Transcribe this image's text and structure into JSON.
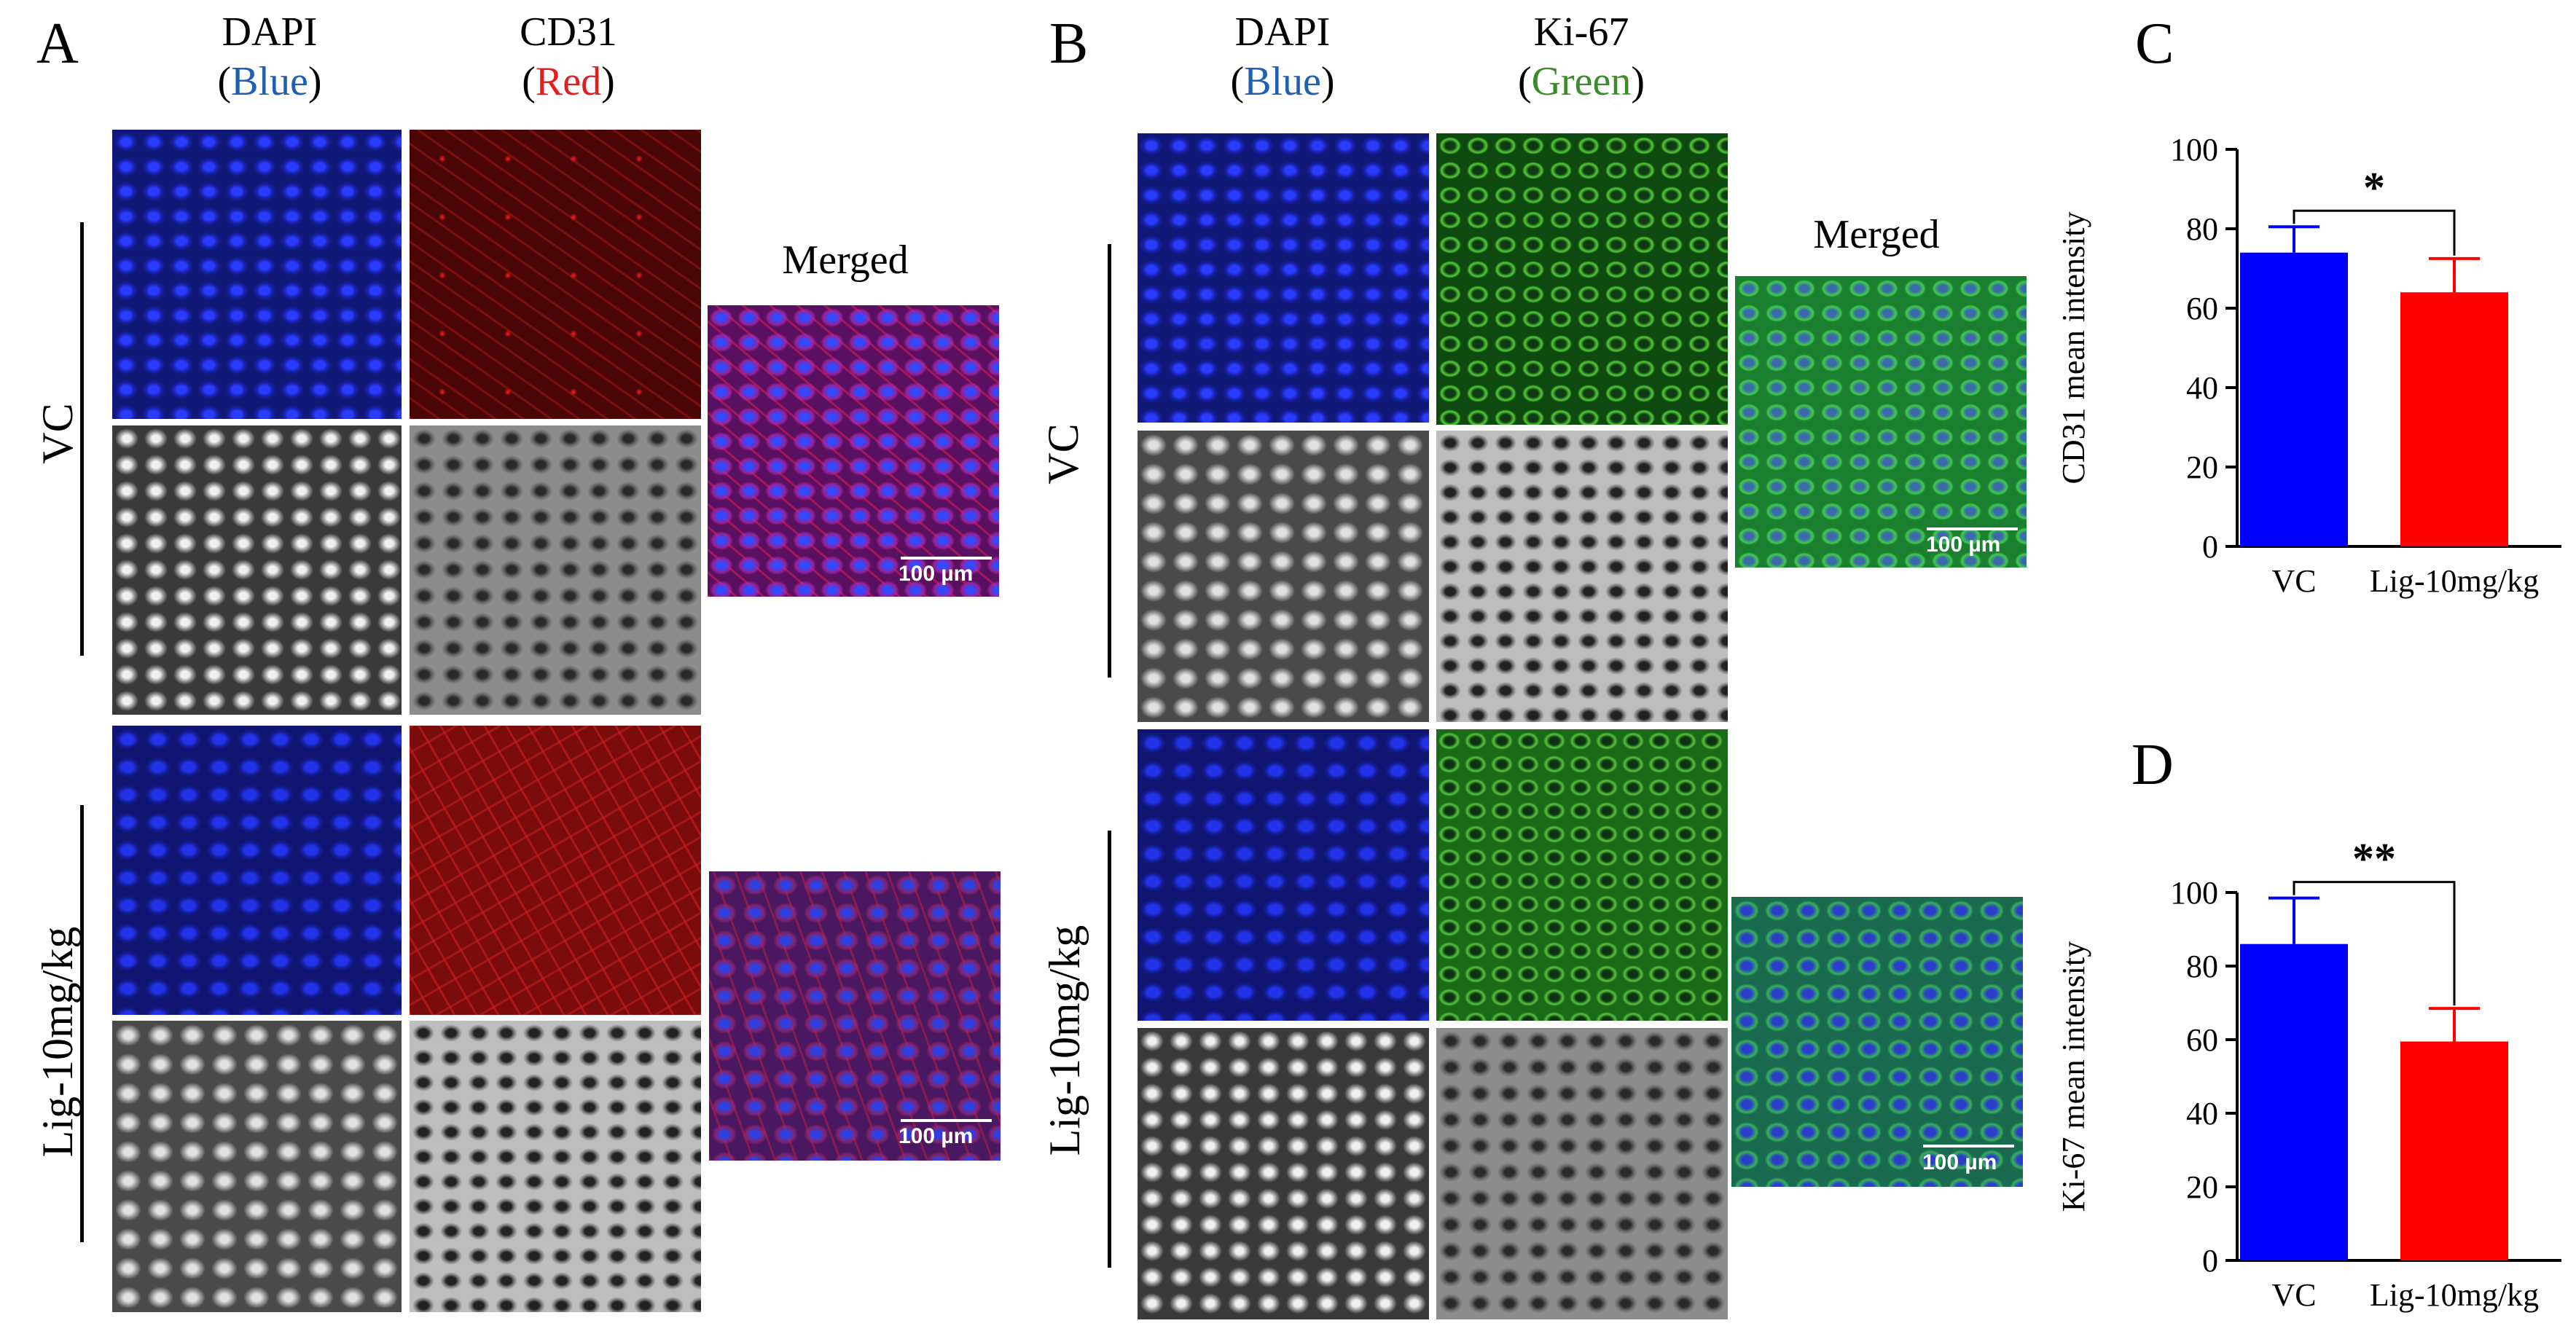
{
  "panels": {
    "A": {
      "letter": "A",
      "col1": {
        "name": "DAPI",
        "color_word": "Blue"
      },
      "col2": {
        "name": "CD31",
        "color_word": "Red"
      },
      "merged": "Merged",
      "group1": "VC",
      "group2": "Lig-10mg/kg",
      "scale": "100 µm"
    },
    "B": {
      "letter": "B",
      "col1": {
        "name": "DAPI",
        "color_word": "Blue"
      },
      "col2": {
        "name": "Ki-67",
        "color_word": "Green"
      },
      "merged": "Merged",
      "group1": "VC",
      "group2": "Lig-10mg/kg",
      "scale": "100 µm"
    },
    "C": {
      "letter": "C"
    },
    "D": {
      "letter": "D"
    }
  },
  "colors": {
    "vc": "#0000ff",
    "lig": "#ff0000"
  },
  "chart_data": [
    {
      "type": "bar",
      "panel": "C",
      "categories": [
        "VC",
        "Lig-10mg/kg"
      ],
      "values": [
        74,
        64
      ],
      "error": [
        6.5,
        8.5
      ],
      "ylabel": "CD31 mean intensity",
      "ylim": [
        0,
        100
      ],
      "yticks": [
        0,
        20,
        40,
        60,
        80,
        100
      ],
      "significance": "*"
    },
    {
      "type": "bar",
      "panel": "D",
      "categories": [
        "VC",
        "Lig-10mg/kg"
      ],
      "values": [
        86,
        59.5
      ],
      "error": [
        12.5,
        9
      ],
      "ylabel": "Ki-67 mean intensity",
      "ylim": [
        0,
        100
      ],
      "yticks": [
        0,
        20,
        40,
        60,
        80,
        100
      ],
      "significance": "**"
    }
  ]
}
